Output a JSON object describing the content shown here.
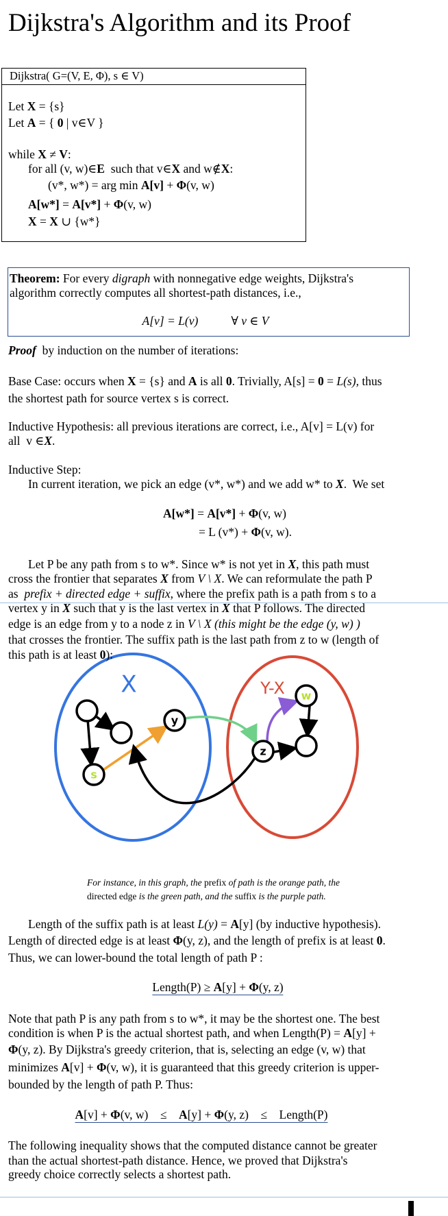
{
  "title": "Dijkstra's Algorithm and its Proof",
  "algorithm": {
    "signature": "Dijkstra( G=(V, E, Φ), s ∈ V)",
    "lines": [
      [
        "Let ",
        "X",
        " = {s}"
      ],
      [
        "Let ",
        "A",
        " = { ",
        "0",
        " | v∈V }"
      ],
      [
        "while ",
        "X",
        " ≠ ",
        "V",
        ":"
      ],
      [
        "for all (v, w)∈",
        "E",
        "  such that v∈",
        "X",
        " and w∉",
        "X",
        ":"
      ],
      [
        "(v*, w*) = arg min ",
        "A[v]",
        " + ",
        "Φ",
        "(v, w)"
      ],
      [
        "A[w*]",
        " = ",
        "A[v*]",
        " + ",
        "Φ",
        "(v, w)"
      ],
      [
        "X",
        " = ",
        "X",
        " ∪ {w*}"
      ]
    ]
  },
  "theorem": {
    "lines": [
      [
        "Theorem:",
        " For every ",
        "digraph",
        " with nonnegative edge weights, Dijkstra's"
      ],
      [
        "algorithm correctly computes all shortest-path distances, i.e.,"
      ],
      [
        "A[v] = L(v)",
        "∀ v ∈ V"
      ]
    ]
  },
  "body": {
    "lines": [
      [
        "Proof",
        "  by induction on the number of iterations:"
      ],
      [
        "Base Case: occurs when ",
        "X",
        " = {s} and ",
        "A",
        " is all ",
        "0",
        ". Trivially, A[s] = ",
        "0",
        " = ",
        "L(s),",
        " thus"
      ],
      [
        "the shortest path for source vertex s is correct."
      ],
      [
        "Inductive Hypothesis: all previous iterations are correct, i.e., A[v] = L(v) for"
      ],
      [
        "all  v ∈",
        "X",
        "."
      ],
      [
        "Inductive Step:"
      ],
      [
        "In current iteration, we pick an edge (v*, w*) and we add w* to ",
        "X",
        ".  We set"
      ],
      [
        "A[w*]",
        " = ",
        "A[v*]",
        " + ",
        "Φ",
        "(v, w)"
      ],
      [
        "= L (v*) + ",
        "Φ",
        "(v, w)."
      ],
      [
        "Let P be any path from s to w*. Since w* is not yet in ",
        "X",
        ", this path must"
      ],
      [
        "cross the frontier that separates ",
        "X",
        " from ",
        "V \\ X",
        ". We can reformulate the path P"
      ],
      [
        "as  ",
        "prefix + directed edge + suffix",
        ", where the prefix path is a path from s to a"
      ],
      [
        "vertex y in ",
        "X",
        " such that y is the last vertex in ",
        "X",
        " that P follows. The directed"
      ],
      [
        "edge is an edge from y to a node z in ",
        "V \\ X (this might be the edge (y, w) )"
      ],
      [
        "that crosses the frontier. The suffix path is the last path from z to w (length of"
      ],
      [
        "this path is at least ",
        "0",
        "):"
      ],
      [
        "Length of the suffix path is at least ",
        "L(y)",
        " = ",
        "A",
        "[y] (by inductive hypothesis)."
      ],
      [
        "Length of directed edge is at least ",
        "Φ",
        "(y, z), and the length of prefix is at least ",
        "0",
        "."
      ],
      [
        "Thus, we can lower-bound the total length of path P :"
      ],
      [
        "Length(P) ≥ ",
        "A",
        "[y] + ",
        "Φ",
        "(y, z)"
      ],
      [
        "Note that path P is any path from s to w*, it may be the shortest one. The best"
      ],
      [
        "condition is when P is the actual shortest path, and when Length(P) = ",
        "A",
        "[y] +"
      ],
      [
        "Φ",
        "(y, z). By Dijkstra's greedy criterion, that is, selecting an edge (v, w) that"
      ],
      [
        "minimizes ",
        "A",
        "[v] + ",
        "Φ",
        "(v, w), it is guaranteed that this greedy criterion is upper-"
      ],
      [
        "bounded by the length of path P. Thus:"
      ],
      [
        "A",
        "[v] + ",
        "Φ",
        "(v, w)    ≤    ",
        "A",
        "[y] + ",
        "Φ",
        "(y, z)    ≤    Length(P)"
      ],
      [
        "The following inequality shows that the computed distance cannot be greater"
      ],
      [
        "than the actual shortest-path distance. Hence, we proved that Dijkstra's"
      ],
      [
        "greedy choice correctly selects a shortest path."
      ]
    ]
  },
  "figure": {
    "set_labels": [
      "X",
      "Y-X"
    ],
    "node_labels": [
      "s",
      "y",
      "z",
      "w"
    ],
    "caption": [
      [
        "For instance, in this graph, the ",
        "prefix",
        " of path is the orange path, the"
      ],
      [
        "directed edge",
        " is the green path, and the ",
        "suffix",
        " is the purple path."
      ]
    ]
  }
}
